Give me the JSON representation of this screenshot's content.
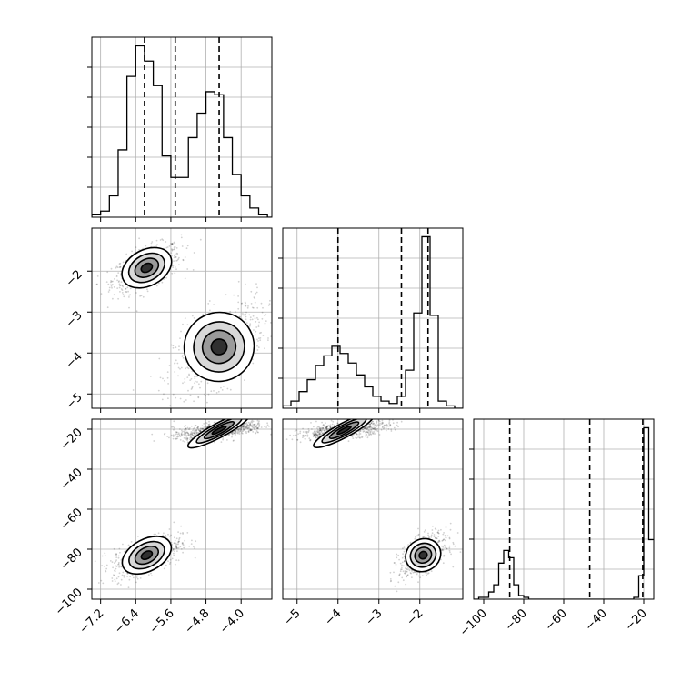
{
  "chart_data": {
    "type": "corner",
    "grid": true,
    "parameters": [
      {
        "id": "p0",
        "range": [
          -7.4,
          -3.3
        ],
        "ticks": [
          -7.2,
          -6.4,
          -5.6,
          -4.8,
          -4.0
        ],
        "tick_labels": [
          "−7.2",
          "−6.4",
          "−5.6",
          "−4.8",
          "−4.0"
        ]
      },
      {
        "id": "p1",
        "range": [
          -5.35,
          -0.95
        ],
        "ticks": [
          -5,
          -4,
          -3,
          -2
        ],
        "tick_labels": [
          "−5",
          "−4",
          "−3",
          "−2"
        ]
      },
      {
        "id": "p2",
        "range": [
          -105,
          -15
        ],
        "ticks": [
          -100,
          -80,
          -60,
          -40,
          -20
        ],
        "tick_labels": [
          "−100",
          "−80",
          "−60",
          "−40",
          "−20"
        ]
      }
    ],
    "histograms": [
      {
        "param": 0,
        "bin_edges": [
          -7.4,
          -7.2,
          -7.0,
          -6.8,
          -6.6,
          -6.4,
          -6.2,
          -6.0,
          -5.8,
          -5.6,
          -5.4,
          -5.2,
          -5.0,
          -4.8,
          -4.6,
          -4.4,
          -4.2,
          -4.0,
          -3.8,
          -3.6,
          -3.4,
          -3.3
        ],
        "counts": [
          1,
          2,
          7,
          22,
          46,
          56,
          51,
          43,
          20,
          13,
          13,
          26,
          34,
          41,
          40,
          26,
          14,
          7,
          3,
          1,
          0
        ],
        "quantiles": [
          -6.2,
          -5.5,
          -4.5
        ]
      },
      {
        "param": 1,
        "bin_edges": [
          -5.35,
          -5.15,
          -4.95,
          -4.75,
          -4.55,
          -4.35,
          -4.15,
          -3.95,
          -3.75,
          -3.55,
          -3.35,
          -3.15,
          -2.95,
          -2.75,
          -2.55,
          -2.35,
          -2.15,
          -1.95,
          -1.75,
          -1.55,
          -1.35,
          -1.15,
          -0.95
        ],
        "counts": [
          1,
          3,
          7,
          12,
          18,
          22,
          26,
          23,
          19,
          14,
          9,
          5,
          3,
          2,
          5,
          16,
          40,
          72,
          39,
          3,
          1,
          0
        ],
        "quantiles": [
          -4.0,
          -2.45,
          -1.8
        ]
      },
      {
        "param": 2,
        "bin_edges": [
          -105,
          -102.5,
          -100,
          -97.5,
          -95,
          -92.5,
          -90,
          -87.5,
          -85,
          -82.5,
          -80,
          -77.5,
          -75,
          -72.5,
          -70,
          -67.5,
          -65,
          -62.5,
          -60,
          -57.5,
          -55,
          -52.5,
          -50,
          -47.5,
          -45,
          -42.5,
          -40,
          -37.5,
          -35,
          -32.5,
          -30,
          -27.5,
          -25,
          -22.5,
          -20,
          -17.5,
          -15
        ],
        "counts": [
          0,
          1,
          1,
          4,
          8,
          20,
          27,
          23,
          8,
          2,
          1,
          0,
          0,
          0,
          0,
          0,
          0,
          0,
          0,
          0,
          0,
          0,
          0,
          0,
          0,
          0,
          0,
          0,
          0,
          0,
          0,
          0,
          1,
          13,
          95,
          33
        ],
        "quantiles": [
          -87,
          -47,
          -20.5
        ]
      }
    ],
    "clusters": [
      {
        "p0": -6.15,
        "p1": -1.92,
        "p2": -83.0,
        "s0": 0.3,
        "s1": 0.22,
        "s2": 4.0
      },
      {
        "p0": -4.5,
        "p1": -3.85,
        "p2": -20.5,
        "s0": 0.4,
        "s1": 0.42,
        "s2": 1.8
      }
    ]
  }
}
